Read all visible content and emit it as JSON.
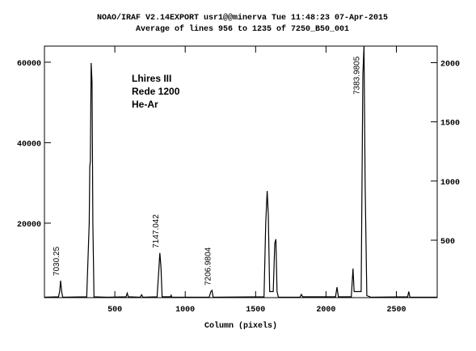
{
  "chart_data": {
    "type": "line",
    "title": "NOAO/IRAF V2.14EXPORT usr1@@minerva Tue 11:48:23 07-Apr-2015",
    "subtitle": "Average of lines 956 to 1235 of 7250_B50_001",
    "x_label": "Column (pixels)",
    "notes": [
      "Lhires III",
      "Rede 1200",
      "He-Ar"
    ],
    "annotations": [
      {
        "text": "7030.25",
        "x": 115
      },
      {
        "text": "7147.042",
        "x": 820
      },
      {
        "text": "7206.9804",
        "x": 1190
      },
      {
        "text": "7383.9805",
        "x": 2270
      }
    ],
    "xlim": [
      0,
      2790
    ],
    "xticks": [
      500,
      1000,
      1500,
      2000,
      2500
    ],
    "ylim": [
      1500,
      64000
    ],
    "yticks": [
      20000,
      40000,
      60000
    ],
    "y2lim": [
      15,
      2140
    ],
    "y2ticks": [
      500,
      1000,
      1500,
      2000
    ],
    "grid": false,
    "series": [
      {
        "color": "#000000",
        "x": [
          0,
          100,
          108,
          115,
          122,
          130,
          300,
          318,
          322,
          326,
          332,
          338,
          344,
          352,
          450,
          580,
          588,
          596,
          680,
          690,
          700,
          800,
          812,
          820,
          828,
          836,
          895,
          900,
          905,
          1170,
          1182,
          1190,
          1198,
          1560,
          1572,
          1582,
          1590,
          1600,
          1625,
          1636,
          1644,
          1652,
          1662,
          1815,
          1825,
          1835,
          2068,
          2078,
          2088,
          2180,
          2192,
          2200,
          2250,
          2262,
          2270,
          2278,
          2290,
          2320,
          2580,
          2588,
          2596,
          2790
        ],
        "values": [
          1600,
          1700,
          3000,
          5700,
          3000,
          1600,
          1700,
          20000,
          34000,
          35500,
          59800,
          55000,
          20000,
          1700,
          1600,
          1700,
          2600,
          1700,
          1600,
          2200,
          1600,
          1700,
          8000,
          12600,
          9000,
          1700,
          1700,
          2100,
          1600,
          1600,
          3000,
          3300,
          1600,
          1700,
          20000,
          28000,
          22000,
          3000,
          3000,
          15000,
          16000,
          3000,
          1600,
          1600,
          2300,
          1700,
          1700,
          4100,
          1700,
          1700,
          8700,
          3000,
          3000,
          57000,
          63900,
          30000,
          2000,
          1600,
          1700,
          3000,
          1600,
          1600
        ]
      }
    ]
  }
}
